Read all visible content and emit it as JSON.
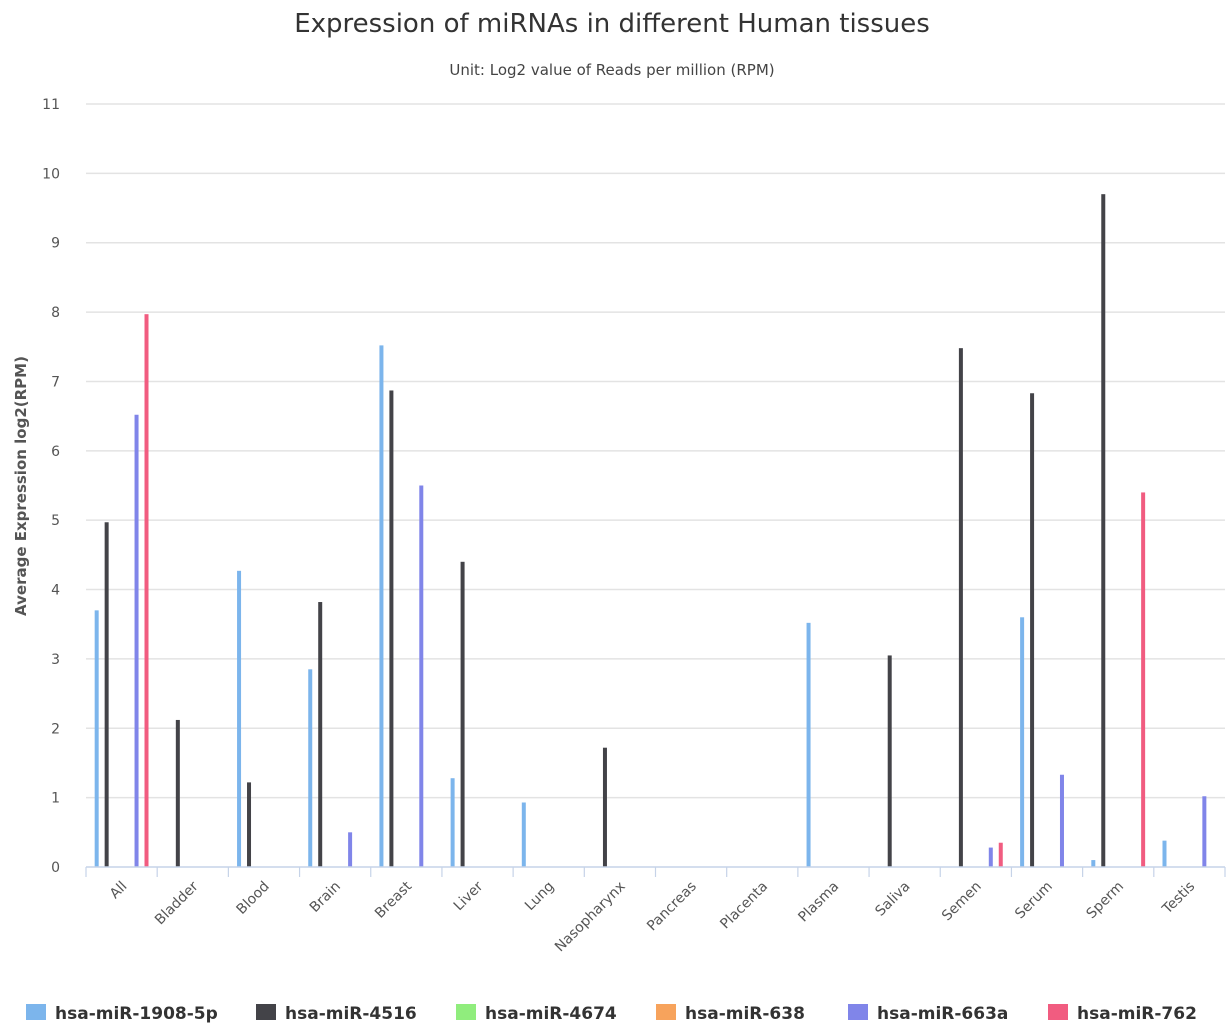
{
  "chart_data": {
    "type": "bar",
    "title": "Expression of miRNAs in different Human tissues",
    "subtitle": "Unit: Log2 value of Reads per million (RPM)",
    "xlabel": "",
    "ylabel": "Average Expression log2(RPM)",
    "ylim": [
      0,
      11
    ],
    "yticks": [
      "0",
      "1",
      "2",
      "3",
      "4",
      "5",
      "6",
      "7",
      "8",
      "9",
      "10",
      "11"
    ],
    "grid": true,
    "legend_position": "bottom",
    "categories": [
      "All",
      "Bladder",
      "Blood",
      "Brain",
      "Breast",
      "Liver",
      "Lung",
      "Nasopharynx",
      "Pancreas",
      "Placenta",
      "Plasma",
      "Saliva",
      "Semen",
      "Serum",
      "Sperm",
      "Testis"
    ],
    "series": [
      {
        "name": "hsa-miR-1908-5p",
        "color": "#7cb5ec",
        "values": [
          3.7,
          0,
          4.27,
          2.85,
          7.52,
          1.28,
          0.93,
          0,
          0,
          0,
          3.52,
          0,
          0,
          3.6,
          0.1,
          0.38
        ]
      },
      {
        "name": "hsa-miR-4516",
        "color": "#434348",
        "values": [
          4.97,
          2.12,
          1.22,
          3.82,
          6.87,
          4.4,
          0,
          1.72,
          0,
          0,
          0,
          3.05,
          7.48,
          6.83,
          9.7,
          0
        ]
      },
      {
        "name": "hsa-miR-4674",
        "color": "#90ed7d",
        "values": [
          0,
          0,
          0,
          0,
          0,
          0,
          0,
          0,
          0,
          0,
          0,
          0,
          0,
          0,
          0,
          0
        ]
      },
      {
        "name": "hsa-miR-638",
        "color": "#f7a35c",
        "values": [
          0,
          0,
          0,
          0,
          0,
          0,
          0,
          0,
          0,
          0,
          0,
          0,
          0,
          0,
          0,
          0
        ]
      },
      {
        "name": "hsa-miR-663a",
        "color": "#8085e9",
        "values": [
          6.52,
          0,
          0,
          0.5,
          5.5,
          0,
          0,
          0,
          0,
          0,
          0,
          0,
          0.28,
          1.33,
          0,
          1.02
        ]
      },
      {
        "name": "hsa-miR-762",
        "color": "#f15c80",
        "values": [
          7.97,
          0,
          0,
          0,
          0,
          0,
          0,
          0,
          0,
          0,
          0,
          0,
          0.35,
          0,
          5.4,
          0
        ]
      }
    ]
  }
}
